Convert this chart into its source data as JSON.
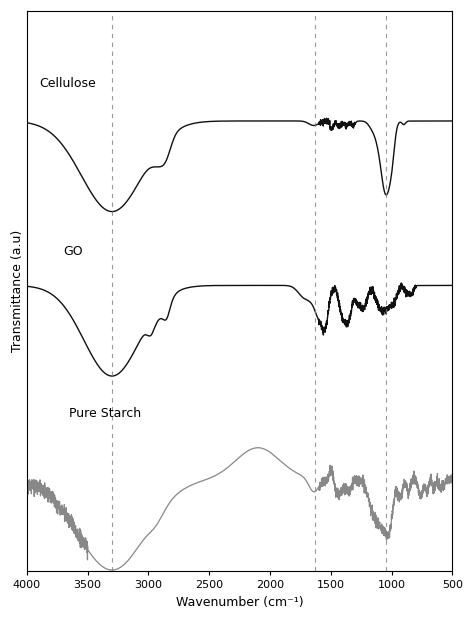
{
  "xlabel": "Wavenumber (cm⁻¹)",
  "ylabel": "Transmittance (a.u)",
  "xlim": [
    4000,
    500
  ],
  "xticks": [
    4000,
    3500,
    3000,
    2500,
    2000,
    1500,
    1000,
    500
  ],
  "dashed_lines": [
    3300,
    1630,
    1050
  ],
  "labels": {
    "cellulose": "Cellulose",
    "go": "GO",
    "pure_starch": "Pure Starch"
  },
  "background_color": "#ffffff",
  "line_color_cellulose": "#111111",
  "line_color_go": "#111111",
  "line_color_starch": "#888888"
}
